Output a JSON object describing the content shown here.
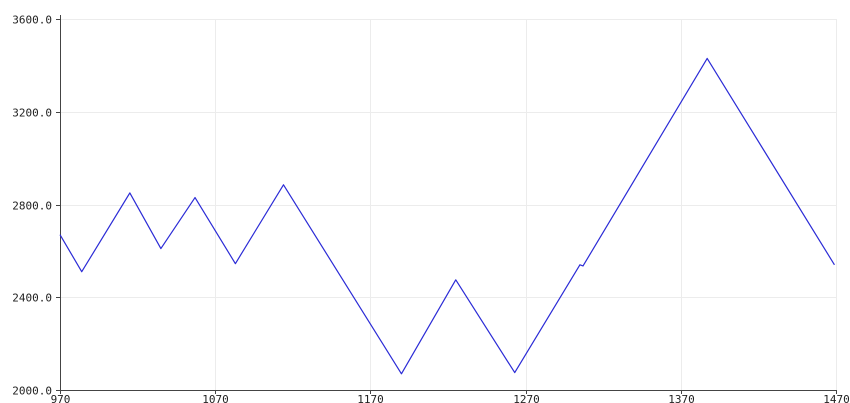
{
  "chart_data": {
    "type": "line",
    "title": "",
    "xlabel": "",
    "ylabel": "",
    "xlim": [
      970,
      1470
    ],
    "ylim": [
      2000,
      3600
    ],
    "x_ticks": [
      970,
      1070,
      1170,
      1270,
      1370,
      1470
    ],
    "x_tick_labels": [
      "970",
      "1070",
      "1170",
      "1270",
      "1370",
      "1470"
    ],
    "y_ticks": [
      2000,
      2400,
      2800,
      3200,
      3600
    ],
    "y_tick_labels": [
      "2000.0",
      "2400.0",
      "2800.0",
      "3200.0",
      "3600.0"
    ],
    "grid": true,
    "legend": "none",
    "series": [
      {
        "color": "#2b2bd6",
        "points": [
          [
            970,
            2670
          ],
          [
            984,
            2510
          ],
          [
            1015,
            2850
          ],
          [
            1035,
            2610
          ],
          [
            1057,
            2830
          ],
          [
            1083,
            2545
          ],
          [
            1114,
            2885
          ],
          [
            1190,
            2070
          ],
          [
            1225,
            2475
          ],
          [
            1263,
            2075
          ],
          [
            1305,
            2540
          ],
          [
            1307,
            2535
          ],
          [
            1387,
            3430
          ],
          [
            1469,
            2540
          ]
        ]
      }
    ]
  }
}
